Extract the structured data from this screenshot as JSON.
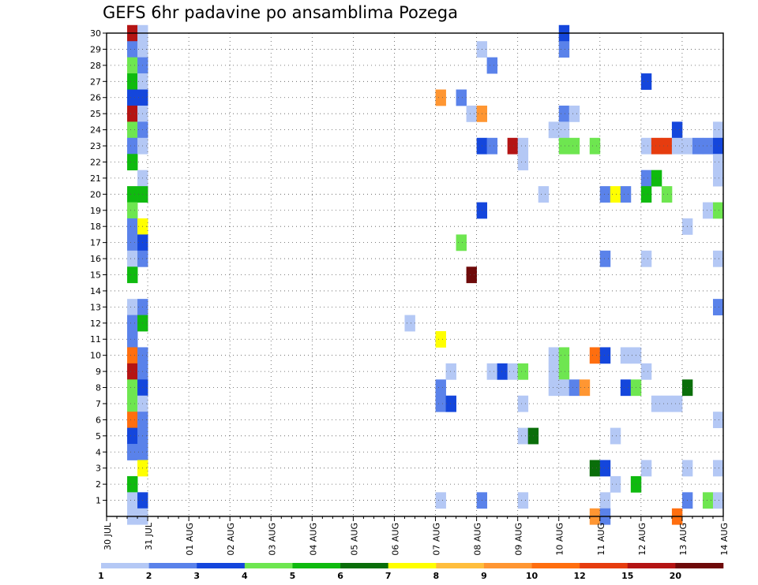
{
  "chart_data": {
    "type": "heatmap",
    "title": "GEFS 6hr padavine po ansamblima Pozega",
    "xlabel": "",
    "ylabel": "",
    "x_tick_labels": [
      "30 JUL",
      "31 JUL",
      "01 AUG",
      "02 AUG",
      "03 AUG",
      "04 AUG",
      "05 AUG",
      "06 AUG",
      "07 AUG",
      "08 AUG",
      "09 AUG",
      "10 AUG",
      "11 AUG",
      "12 AUG",
      "13 AUG",
      "14 AUG"
    ],
    "y_tick_labels": [
      "1",
      "2",
      "3",
      "4",
      "5",
      "6",
      "7",
      "8",
      "9",
      "10",
      "11",
      "12",
      "13",
      "14",
      "15",
      "16",
      "17",
      "18",
      "19",
      "20",
      "21",
      "22",
      "23",
      "24",
      "25",
      "26",
      "27",
      "28",
      "29",
      "30"
    ],
    "xlim_days": [
      0,
      15
    ],
    "ylim": [
      0,
      30
    ],
    "grid": true,
    "colorbar": {
      "labels": [
        "1",
        "2",
        "3",
        "4",
        "5",
        "6",
        "7",
        "8",
        "9",
        "10",
        "12",
        "15",
        "20"
      ],
      "colors": [
        "#b4c8f5",
        "#5a82ea",
        "#1446dc",
        "#6ee650",
        "#0fba0f",
        "#0a6e0a",
        "#ffff00",
        "#ffbe3c",
        "#ff9632",
        "#ff6e0f",
        "#e63c0f",
        "#b41414",
        "#6e0a0a"
      ]
    },
    "cells": [
      [
        0.5,
        30,
        11
      ],
      [
        0.5,
        29,
        1
      ],
      [
        0.5,
        28,
        3
      ],
      [
        0.5,
        27,
        4
      ],
      [
        0.5,
        26,
        2
      ],
      [
        0.5,
        25,
        11
      ],
      [
        0.5,
        24,
        3
      ],
      [
        0.5,
        23,
        1
      ],
      [
        0.5,
        22,
        4
      ],
      [
        0.5,
        20,
        4
      ],
      [
        0.5,
        19,
        3
      ],
      [
        0.5,
        18,
        1
      ],
      [
        0.5,
        17,
        1
      ],
      [
        0.5,
        16,
        0
      ],
      [
        0.5,
        15,
        4
      ],
      [
        0.5,
        13,
        0
      ],
      [
        0.5,
        12,
        1
      ],
      [
        0.5,
        11,
        1
      ],
      [
        0.5,
        10,
        9
      ],
      [
        0.5,
        9,
        11
      ],
      [
        0.5,
        8,
        3
      ],
      [
        0.5,
        7,
        3
      ],
      [
        0.5,
        6,
        9
      ],
      [
        0.5,
        5,
        2
      ],
      [
        0.5,
        4,
        1
      ],
      [
        0.5,
        2,
        4
      ],
      [
        0.5,
        1,
        0
      ],
      [
        0.5,
        0,
        0
      ],
      [
        0.75,
        30,
        0
      ],
      [
        0.75,
        29,
        0
      ],
      [
        0.75,
        28,
        1
      ],
      [
        0.75,
        27,
        0
      ],
      [
        0.75,
        26,
        2
      ],
      [
        0.75,
        25,
        0
      ],
      [
        0.75,
        24,
        1
      ],
      [
        0.75,
        23,
        0
      ],
      [
        0.75,
        21,
        0
      ],
      [
        0.75,
        20,
        4
      ],
      [
        0.75,
        18,
        6
      ],
      [
        0.75,
        17,
        2
      ],
      [
        0.75,
        16,
        1
      ],
      [
        0.75,
        13,
        1
      ],
      [
        0.75,
        12,
        4
      ],
      [
        0.75,
        10,
        1
      ],
      [
        0.75,
        9,
        1
      ],
      [
        0.75,
        8,
        2
      ],
      [
        0.75,
        7,
        0
      ],
      [
        0.75,
        6,
        1
      ],
      [
        0.75,
        5,
        1
      ],
      [
        0.75,
        4,
        1
      ],
      [
        0.75,
        3,
        6
      ],
      [
        0.75,
        1,
        2
      ],
      [
        0.75,
        0,
        0
      ],
      [
        7.25,
        12,
        0
      ],
      [
        8.0,
        26,
        8
      ],
      [
        8.0,
        11,
        6
      ],
      [
        8.0,
        8,
        1
      ],
      [
        8.0,
        7,
        1
      ],
      [
        8.0,
        1,
        0
      ],
      [
        8.25,
        9,
        0
      ],
      [
        8.25,
        7,
        2
      ],
      [
        8.5,
        17,
        3
      ],
      [
        8.5,
        26,
        1
      ],
      [
        8.75,
        25,
        0
      ],
      [
        8.75,
        15,
        12
      ],
      [
        9.0,
        29,
        0
      ],
      [
        9.0,
        25,
        8
      ],
      [
        9.0,
        23,
        2
      ],
      [
        9.0,
        19,
        2
      ],
      [
        9.0,
        1,
        1
      ],
      [
        9.25,
        28,
        1
      ],
      [
        9.25,
        23,
        1
      ],
      [
        9.25,
        9,
        0
      ],
      [
        9.5,
        9,
        2
      ],
      [
        9.75,
        23,
        11
      ],
      [
        9.75,
        9,
        0
      ],
      [
        10.0,
        23,
        0
      ],
      [
        10.0,
        22,
        0
      ],
      [
        10.0,
        9,
        3
      ],
      [
        10.0,
        7,
        0
      ],
      [
        10.0,
        5,
        0
      ],
      [
        10.0,
        1,
        0
      ],
      [
        10.25,
        5,
        5
      ],
      [
        10.5,
        20,
        0
      ],
      [
        10.75,
        24,
        0
      ],
      [
        10.75,
        10,
        0
      ],
      [
        10.75,
        9,
        0
      ],
      [
        10.75,
        8,
        0
      ],
      [
        11.0,
        30,
        2
      ],
      [
        11.0,
        29,
        1
      ],
      [
        11.0,
        25,
        1
      ],
      [
        11.0,
        24,
        0
      ],
      [
        11.0,
        23,
        3
      ],
      [
        11.0,
        10,
        3
      ],
      [
        11.0,
        9,
        3
      ],
      [
        11.0,
        8,
        0
      ],
      [
        11.25,
        25,
        0
      ],
      [
        11.25,
        23,
        3
      ],
      [
        11.25,
        8,
        1
      ],
      [
        11.5,
        8,
        8
      ],
      [
        11.75,
        23,
        3
      ],
      [
        11.75,
        10,
        9
      ],
      [
        11.75,
        3,
        5
      ],
      [
        11.75,
        0,
        8
      ],
      [
        12.0,
        20,
        1
      ],
      [
        12.0,
        16,
        1
      ],
      [
        12.0,
        10,
        2
      ],
      [
        12.0,
        3,
        2
      ],
      [
        12.0,
        1,
        0
      ],
      [
        12.0,
        0,
        1
      ],
      [
        12.25,
        20,
        6
      ],
      [
        12.25,
        5,
        0
      ],
      [
        12.25,
        2,
        0
      ],
      [
        12.5,
        20,
        1
      ],
      [
        12.5,
        10,
        0
      ],
      [
        12.5,
        8,
        2
      ],
      [
        12.75,
        10,
        0
      ],
      [
        12.75,
        8,
        3
      ],
      [
        12.75,
        2,
        4
      ],
      [
        13.0,
        27,
        2
      ],
      [
        13.0,
        23,
        0
      ],
      [
        13.0,
        21,
        1
      ],
      [
        13.0,
        20,
        4
      ],
      [
        13.0,
        16,
        0
      ],
      [
        13.0,
        9,
        0
      ],
      [
        13.0,
        3,
        0
      ],
      [
        13.25,
        23,
        10
      ],
      [
        13.25,
        21,
        4
      ],
      [
        13.25,
        7,
        0
      ],
      [
        13.5,
        23,
        10
      ],
      [
        13.5,
        20,
        3
      ],
      [
        13.5,
        7,
        0
      ],
      [
        13.75,
        24,
        2
      ],
      [
        13.75,
        23,
        0
      ],
      [
        13.75,
        7,
        0
      ],
      [
        13.75,
        0,
        9
      ],
      [
        14.0,
        23,
        0
      ],
      [
        14.0,
        18,
        0
      ],
      [
        14.0,
        8,
        5
      ],
      [
        14.0,
        3,
        0
      ],
      [
        14.0,
        1,
        1
      ],
      [
        14.25,
        23,
        1
      ],
      [
        14.5,
        23,
        1
      ],
      [
        14.5,
        19,
        0
      ],
      [
        14.5,
        1,
        3
      ],
      [
        14.75,
        24,
        0
      ],
      [
        14.75,
        23,
        2
      ],
      [
        14.75,
        22,
        0
      ],
      [
        14.75,
        21,
        0
      ],
      [
        14.75,
        19,
        3
      ],
      [
        14.75,
        16,
        0
      ],
      [
        14.75,
        13,
        1
      ],
      [
        14.75,
        6,
        0
      ],
      [
        14.75,
        3,
        0
      ],
      [
        14.75,
        1,
        0
      ]
    ]
  }
}
